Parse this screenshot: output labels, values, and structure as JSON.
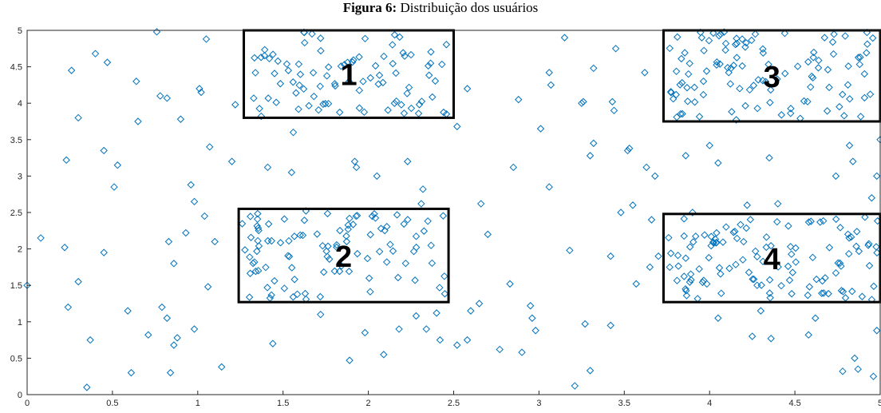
{
  "caption": {
    "prefix": "Figura 6:",
    "text": " Distribuição dos usuários"
  },
  "chart_data": {
    "type": "scatter",
    "title": "Distribuição dos usuários",
    "xlim": [
      0,
      5
    ],
    "ylim": [
      0,
      5
    ],
    "x_ticks": [
      "0",
      "0.5",
      "1",
      "1.5",
      "2",
      "2.5",
      "3",
      "3.5",
      "4",
      "4.5",
      "5"
    ],
    "y_ticks": [
      "0",
      "0.5",
      "1",
      "1.5",
      "2",
      "2.5",
      "3",
      "3.5",
      "4",
      "4.5",
      "5"
    ],
    "grid": false,
    "marker": "diamond-open",
    "marker_color": "#0072BD",
    "zone_color": "#000000",
    "zones": [
      {
        "label": "1",
        "x": [
          1.27,
          2.5
        ],
        "y": [
          3.8,
          5.0
        ]
      },
      {
        "label": "2",
        "x": [
          1.24,
          2.47
        ],
        "y": [
          1.27,
          2.55
        ]
      },
      {
        "label": "3",
        "x": [
          3.73,
          5.0
        ],
        "y": [
          3.75,
          5.0
        ]
      },
      {
        "label": "4",
        "x": [
          3.73,
          5.0
        ],
        "y": [
          1.27,
          2.48
        ]
      }
    ],
    "scattered_points": [
      [
        0.0,
        1.5
      ],
      [
        0.08,
        2.15
      ],
      [
        0.22,
        2.02
      ],
      [
        0.23,
        3.22
      ],
      [
        0.24,
        1.2
      ],
      [
        0.26,
        4.45
      ],
      [
        0.3,
        3.8
      ],
      [
        0.3,
        1.55
      ],
      [
        0.35,
        0.1
      ],
      [
        0.37,
        0.75
      ],
      [
        0.4,
        4.68
      ],
      [
        0.45,
        3.35
      ],
      [
        0.45,
        1.95
      ],
      [
        0.47,
        4.56
      ],
      [
        0.51,
        2.85
      ],
      [
        0.53,
        3.15
      ],
      [
        0.59,
        1.15
      ],
      [
        0.61,
        0.3
      ],
      [
        0.64,
        4.3
      ],
      [
        0.65,
        3.75
      ],
      [
        0.71,
        0.82
      ],
      [
        0.76,
        4.98
      ],
      [
        0.78,
        4.1
      ],
      [
        0.79,
        1.2
      ],
      [
        0.82,
        4.07
      ],
      [
        0.82,
        1.05
      ],
      [
        0.83,
        2.1
      ],
      [
        0.84,
        0.3
      ],
      [
        0.86,
        1.8
      ],
      [
        0.86,
        0.68
      ],
      [
        0.88,
        0.78
      ],
      [
        0.9,
        3.78
      ],
      [
        0.93,
        2.22
      ],
      [
        0.96,
        2.88
      ],
      [
        0.98,
        2.65
      ],
      [
        0.98,
        0.9
      ],
      [
        1.01,
        4.2
      ],
      [
        1.02,
        4.15
      ],
      [
        1.04,
        2.45
      ],
      [
        1.05,
        4.88
      ],
      [
        1.06,
        1.48
      ],
      [
        1.07,
        3.4
      ],
      [
        1.1,
        2.1
      ],
      [
        1.14,
        0.38
      ],
      [
        1.2,
        3.2
      ],
      [
        1.22,
        3.98
      ],
      [
        1.41,
        3.12
      ],
      [
        1.44,
        0.7
      ],
      [
        1.55,
        3.05
      ],
      [
        1.56,
        3.6
      ],
      [
        1.72,
        1.1
      ],
      [
        1.89,
        0.47
      ],
      [
        1.92,
        3.2
      ],
      [
        1.93,
        3.12
      ],
      [
        1.98,
        0.85
      ],
      [
        2.05,
        3.0
      ],
      [
        2.09,
        0.55
      ],
      [
        2.18,
        0.9
      ],
      [
        2.23,
        3.2
      ],
      [
        2.28,
        1.08
      ],
      [
        2.31,
        2.62
      ],
      [
        2.32,
        2.82
      ],
      [
        2.34,
        0.9
      ],
      [
        2.4,
        1.12
      ],
      [
        2.42,
        0.75
      ],
      [
        2.52,
        3.68
      ],
      [
        2.52,
        0.68
      ],
      [
        2.58,
        0.75
      ],
      [
        2.58,
        4.2
      ],
      [
        2.6,
        1.15
      ],
      [
        2.65,
        1.25
      ],
      [
        2.66,
        2.62
      ],
      [
        2.7,
        2.2
      ],
      [
        2.77,
        0.62
      ],
      [
        2.83,
        1.52
      ],
      [
        2.85,
        3.12
      ],
      [
        2.88,
        4.05
      ],
      [
        2.9,
        0.58
      ],
      [
        2.95,
        1.22
      ],
      [
        2.96,
        1.05
      ],
      [
        2.98,
        0.88
      ],
      [
        3.01,
        3.65
      ],
      [
        3.06,
        2.85
      ],
      [
        3.06,
        4.42
      ],
      [
        3.07,
        4.25
      ],
      [
        3.15,
        4.9
      ],
      [
        3.18,
        1.98
      ],
      [
        3.21,
        0.12
      ],
      [
        3.25,
        4.0
      ],
      [
        3.26,
        4.02
      ],
      [
        3.27,
        0.97
      ],
      [
        3.3,
        0.33
      ],
      [
        3.3,
        3.28
      ],
      [
        3.32,
        3.45
      ],
      [
        3.32,
        4.48
      ],
      [
        3.42,
        0.95
      ],
      [
        3.42,
        1.9
      ],
      [
        3.43,
        4.02
      ],
      [
        3.44,
        3.9
      ],
      [
        3.45,
        4.75
      ],
      [
        3.48,
        2.5
      ],
      [
        3.52,
        3.35
      ],
      [
        3.53,
        3.38
      ],
      [
        3.55,
        2.6
      ],
      [
        3.57,
        1.52
      ],
      [
        3.62,
        4.42
      ],
      [
        3.63,
        3.12
      ],
      [
        3.65,
        1.75
      ],
      [
        3.66,
        2.4
      ],
      [
        3.68,
        3.0
      ],
      [
        3.7,
        1.9
      ],
      [
        3.86,
        3.28
      ],
      [
        3.9,
        2.5
      ],
      [
        4.0,
        3.42
      ],
      [
        4.05,
        3.18
      ],
      [
        4.05,
        1.05
      ],
      [
        4.22,
        2.6
      ],
      [
        4.25,
        0.8
      ],
      [
        4.3,
        1.15
      ],
      [
        4.35,
        3.25
      ],
      [
        4.36,
        0.77
      ],
      [
        4.4,
        2.62
      ],
      [
        4.58,
        0.82
      ],
      [
        4.62,
        1.05
      ],
      [
        4.74,
        3.0
      ],
      [
        4.78,
        0.32
      ],
      [
        4.82,
        3.42
      ],
      [
        4.84,
        3.2
      ],
      [
        4.85,
        0.5
      ],
      [
        4.87,
        0.35
      ],
      [
        4.96,
        0.25
      ],
      [
        4.98,
        0.88
      ],
      [
        4.98,
        3.0
      ],
      [
        5.0,
        3.5
      ],
      [
        4.93,
        2.05
      ],
      [
        4.95,
        2.7
      ]
    ],
    "zone_points": [
      {
        "count": 90,
        "x": [
          1.29,
          2.48
        ],
        "y": [
          3.82,
          4.98
        ],
        "seed": 11
      },
      {
        "count": 100,
        "x": [
          1.26,
          2.45
        ],
        "y": [
          1.29,
          2.53
        ],
        "seed": 23
      },
      {
        "count": 110,
        "x": [
          3.75,
          4.99
        ],
        "y": [
          3.77,
          4.98
        ],
        "seed": 37
      },
      {
        "count": 115,
        "x": [
          3.75,
          4.99
        ],
        "y": [
          1.29,
          2.46
        ],
        "seed": 53
      }
    ]
  }
}
